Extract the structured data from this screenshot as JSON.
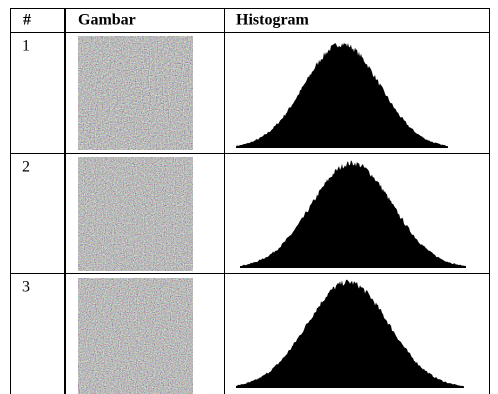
{
  "table": {
    "header": [
      "#",
      "Gambar",
      "Histogram"
    ],
    "rows": [
      [
        "1"
      ],
      [
        "2"
      ],
      [
        "3"
      ]
    ]
  }
}
